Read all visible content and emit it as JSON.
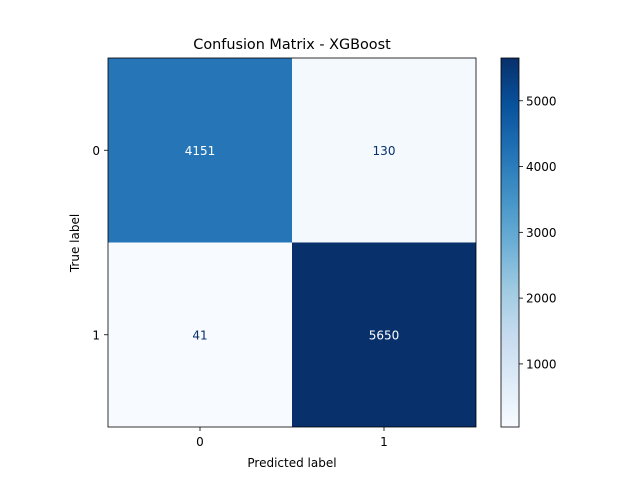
{
  "chart_data": {
    "type": "heatmap",
    "title": "Confusion Matrix - XGBoost",
    "xlabel": "Predicted label",
    "ylabel": "True label",
    "x_categories": [
      "0",
      "1"
    ],
    "y_categories": [
      "0",
      "1"
    ],
    "values": [
      [
        4151,
        130
      ],
      [
        41,
        5650
      ]
    ],
    "cell_labels": [
      [
        "4151",
        "130"
      ],
      [
        "41",
        "5650"
      ]
    ],
    "colormap": "Blues",
    "colorbar": {
      "range": [
        41,
        5650
      ],
      "ticks": [
        1000,
        2000,
        3000,
        4000,
        5000
      ],
      "tick_labels": [
        "1000",
        "2000",
        "3000",
        "4000",
        "5000"
      ]
    },
    "grid": false
  }
}
